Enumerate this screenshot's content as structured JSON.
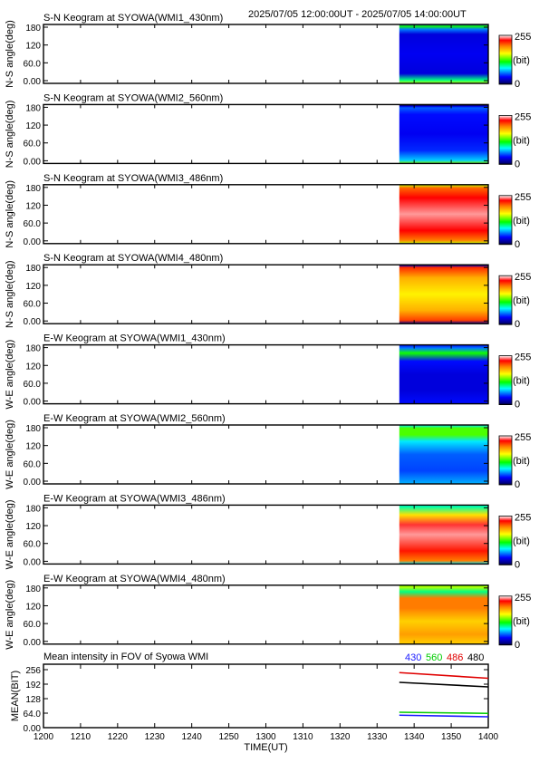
{
  "header": {
    "time_range": "2025/07/05 12:00:00UT - 2025/07/05 14:00:00UT"
  },
  "colorbar": {
    "max_label": "255",
    "unit_label": "(bit)",
    "min_label": "0"
  },
  "keograms": [
    {
      "title": "S-N Keogram at SYOWA(WMI1_430nm)",
      "ylabel": "N-S angle(deg)",
      "profile": "sn430"
    },
    {
      "title": "S-N Keogram at SYOWA(WMI2_560nm)",
      "ylabel": "N-S angle(deg)",
      "profile": "sn560"
    },
    {
      "title": "S-N Keogram at SYOWA(WMI3_486nm)",
      "ylabel": "N-S angle(deg)",
      "profile": "sn486"
    },
    {
      "title": "S-N Keogram at SYOWA(WMI4_480nm)",
      "ylabel": "N-S angle(deg)",
      "profile": "sn480"
    },
    {
      "title": "E-W Keogram at SYOWA(WMI1_430nm)",
      "ylabel": "W-E angle(deg)",
      "profile": "ew430"
    },
    {
      "title": "E-W Keogram at SYOWA(WMI2_560nm)",
      "ylabel": "W-E angle(deg)",
      "profile": "ew560"
    },
    {
      "title": "E-W Keogram at SYOWA(WMI3_486nm)",
      "ylabel": "W-E angle(deg)",
      "profile": "ew486"
    },
    {
      "title": "E-W Keogram at SYOWA(WMI4_480nm)",
      "ylabel": "W-E angle(deg)",
      "profile": "ew480"
    }
  ],
  "keogram_yticks": [
    "180",
    "120",
    "60.0",
    "0.00"
  ],
  "mean_panel": {
    "title": "Mean intensity in FOV of Syowa WMI",
    "ylabel": "MEAN(BIT)",
    "yticks": [
      "256",
      "192",
      "128",
      "64.0",
      "0.00"
    ]
  },
  "x_axis": {
    "label": "TIME(UT)",
    "ticks": [
      "1200",
      "1210",
      "1220",
      "1230",
      "1240",
      "1250",
      "1300",
      "1310",
      "1320",
      "1330",
      "1340",
      "1350",
      "1400"
    ]
  },
  "colors": {
    "c430": "#1a1aff",
    "c560": "#00cc00",
    "c486": "#e00000",
    "c480": "#000000"
  },
  "chart_data": [
    {
      "type": "heatmap",
      "description_label": "keograms",
      "x_range": [
        "12:00",
        "14:00"
      ],
      "data_start": "13:36",
      "y_range": [
        0,
        180
      ],
      "color_range": [
        0,
        255
      ],
      "panels": [
        {
          "name": "S-N WMI1_430nm",
          "intensity_by_angle": [
            [
              0,
              150
            ],
            [
              10,
              100
            ],
            [
              30,
              30
            ],
            [
              90,
              35
            ],
            [
              150,
              30
            ],
            [
              165,
              60
            ],
            [
              175,
              120
            ],
            [
              180,
              40
            ]
          ]
        },
        {
          "name": "S-N WMI2_560nm",
          "intensity_by_angle": [
            [
              0,
              140
            ],
            [
              10,
              75
            ],
            [
              40,
              45
            ],
            [
              90,
              35
            ],
            [
              150,
              40
            ],
            [
              170,
              55
            ],
            [
              175,
              30
            ],
            [
              180,
              0
            ]
          ]
        },
        {
          "name": "S-N WMI3_486nm",
          "intensity_by_angle": [
            [
              0,
              150
            ],
            [
              10,
              200
            ],
            [
              40,
              230
            ],
            [
              90,
              245
            ],
            [
              140,
              230
            ],
            [
              170,
              205
            ],
            [
              180,
              150
            ]
          ]
        },
        {
          "name": "S-N WMI4_480nm",
          "intensity_by_angle": [
            [
              0,
              15
            ],
            [
              10,
              215
            ],
            [
              40,
              185
            ],
            [
              90,
              165
            ],
            [
              140,
              185
            ],
            [
              172,
              220
            ],
            [
              178,
              20
            ],
            [
              180,
              0
            ]
          ]
        },
        {
          "name": "E-W WMI1_430nm",
          "intensity_by_angle": [
            [
              0,
              40
            ],
            [
              40,
              30
            ],
            [
              90,
              30
            ],
            [
              130,
              40
            ],
            [
              155,
              120
            ],
            [
              170,
              60
            ],
            [
              180,
              40
            ]
          ]
        },
        {
          "name": "E-W WMI2_560nm",
          "intensity_by_angle": [
            [
              0,
              70
            ],
            [
              40,
              50
            ],
            [
              90,
              55
            ],
            [
              130,
              80
            ],
            [
              150,
              130
            ],
            [
              170,
              130
            ],
            [
              180,
              80
            ]
          ]
        },
        {
          "name": "E-W WMI3_486nm",
          "intensity_by_angle": [
            [
              0,
              80
            ],
            [
              10,
              200
            ],
            [
              40,
              225
            ],
            [
              90,
              245
            ],
            [
              120,
              235
            ],
            [
              150,
              170
            ],
            [
              175,
              95
            ],
            [
              180,
              90
            ]
          ]
        },
        {
          "name": "E-W WMI4_480nm",
          "intensity_by_angle": [
            [
              0,
              175
            ],
            [
              30,
              190
            ],
            [
              70,
              175
            ],
            [
              110,
              200
            ],
            [
              140,
              200
            ],
            [
              160,
              100
            ],
            [
              175,
              150
            ],
            [
              180,
              120
            ]
          ]
        }
      ]
    },
    {
      "type": "line",
      "title": "Mean intensity in FOV of Syowa WMI",
      "xlabel": "TIME(UT)",
      "ylabel": "MEAN(BIT)",
      "x_range": [
        "12:00",
        "14:00"
      ],
      "ylim": [
        0,
        280
      ],
      "series": [
        {
          "name": "430",
          "color": "#1a1aff",
          "x": [
            "13:36",
            "14:00"
          ],
          "values": [
            55,
            48
          ]
        },
        {
          "name": "560",
          "color": "#00cc00",
          "x": [
            "13:36",
            "14:00"
          ],
          "values": [
            68,
            63
          ]
        },
        {
          "name": "486",
          "color": "#e00000",
          "x": [
            "13:36",
            "14:00"
          ],
          "values": [
            243,
            218
          ]
        },
        {
          "name": "480",
          "color": "#000000",
          "x": [
            "13:36",
            "14:00"
          ],
          "values": [
            200,
            180
          ]
        }
      ]
    }
  ]
}
